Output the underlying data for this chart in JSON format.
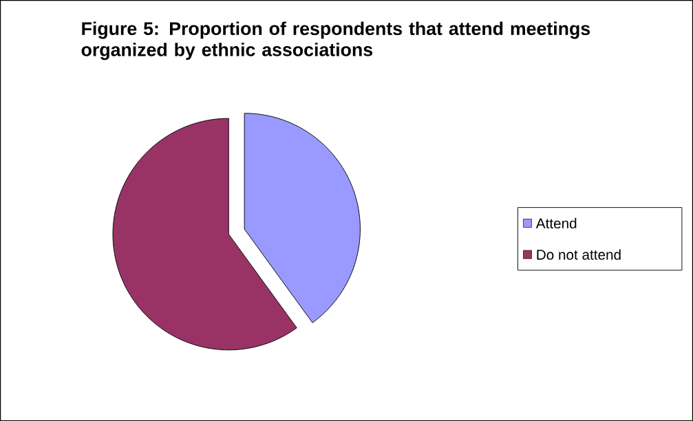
{
  "chart_data": {
    "type": "pie",
    "title": "Figure 5: Proportion of respondents that attend meetings organized by ethnic associations",
    "categories": [
      "Attend",
      "Do not attend"
    ],
    "values": [
      40,
      60
    ],
    "colors": [
      "#9999ff",
      "#993366"
    ],
    "legend": "right"
  }
}
